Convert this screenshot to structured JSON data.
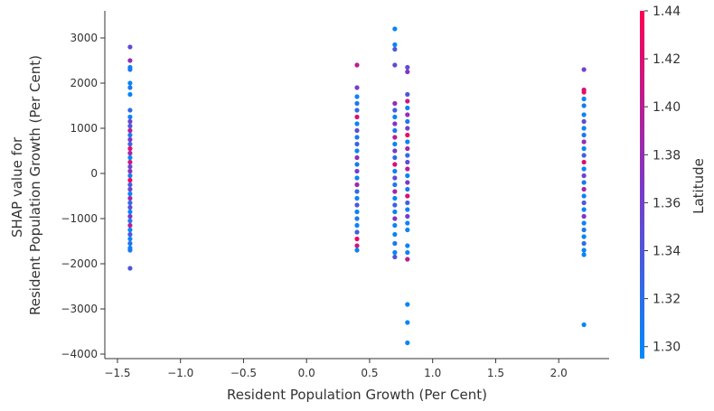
{
  "chart_data": {
    "type": "scatter",
    "title": "",
    "xlabel": "Resident Population Growth (Per Cent)",
    "ylabel_lines": [
      "SHAP value for",
      "Resident Population Growth (Per Cent)"
    ],
    "xlim": [
      -1.6,
      2.4
    ],
    "ylim": [
      -4100,
      3600
    ],
    "x_ticks": [
      -1.5,
      -1.0,
      -0.5,
      0.0,
      0.5,
      1.0,
      1.5,
      2.0
    ],
    "x_tick_labels": [
      "−1.5",
      "−1.0",
      "−0.5",
      "0.0",
      "0.5",
      "1.0",
      "1.5",
      "2.0"
    ],
    "y_ticks": [
      -4000,
      -3000,
      -2000,
      -1000,
      0,
      1000,
      2000,
      3000
    ],
    "y_tick_labels": [
      "−4000",
      "−3000",
      "−2000",
      "−1000",
      "0",
      "1000",
      "2000",
      "3000"
    ],
    "colorbar": {
      "label": "Latitude",
      "range": [
        1.295,
        1.44
      ],
      "ticks": [
        1.3,
        1.32,
        1.34,
        1.36,
        1.38,
        1.4,
        1.42,
        1.44
      ],
      "tick_labels": [
        "1.30",
        "1.32",
        "1.34",
        "1.36",
        "1.38",
        "1.40",
        "1.42",
        "1.44"
      ],
      "color_low": "#008afb",
      "color_mid": "#7d37c7",
      "color_high": "#ff0052"
    },
    "points": [
      {
        "x": -1.4,
        "y": 2800,
        "c": 1.35
      },
      {
        "x": -1.4,
        "y": 2500,
        "c": 1.38
      },
      {
        "x": -1.4,
        "y": 2350,
        "c": 1.3
      },
      {
        "x": -1.4,
        "y": 2300,
        "c": 1.31
      },
      {
        "x": -1.4,
        "y": 2000,
        "c": 1.3
      },
      {
        "x": -1.4,
        "y": 1900,
        "c": 1.31
      },
      {
        "x": -1.4,
        "y": 1750,
        "c": 1.3
      },
      {
        "x": -1.4,
        "y": 1400,
        "c": 1.32
      },
      {
        "x": -1.4,
        "y": 1250,
        "c": 1.3
      },
      {
        "x": -1.4,
        "y": 1150,
        "c": 1.36
      },
      {
        "x": -1.4,
        "y": 1050,
        "c": 1.34
      },
      {
        "x": -1.4,
        "y": 950,
        "c": 1.4
      },
      {
        "x": -1.4,
        "y": 850,
        "c": 1.31
      },
      {
        "x": -1.4,
        "y": 750,
        "c": 1.37
      },
      {
        "x": -1.4,
        "y": 650,
        "c": 1.33
      },
      {
        "x": -1.4,
        "y": 550,
        "c": 1.42
      },
      {
        "x": -1.4,
        "y": 450,
        "c": 1.39
      },
      {
        "x": -1.4,
        "y": 350,
        "c": 1.3
      },
      {
        "x": -1.4,
        "y": 250,
        "c": 1.41
      },
      {
        "x": -1.4,
        "y": 150,
        "c": 1.35
      },
      {
        "x": -1.4,
        "y": 50,
        "c": 1.38
      },
      {
        "x": -1.4,
        "y": -50,
        "c": 1.31
      },
      {
        "x": -1.4,
        "y": -150,
        "c": 1.43
      },
      {
        "x": -1.4,
        "y": -250,
        "c": 1.33
      },
      {
        "x": -1.4,
        "y": -350,
        "c": 1.36
      },
      {
        "x": -1.4,
        "y": -450,
        "c": 1.3
      },
      {
        "x": -1.4,
        "y": -550,
        "c": 1.39
      },
      {
        "x": -1.4,
        "y": -650,
        "c": 1.32
      },
      {
        "x": -1.4,
        "y": -750,
        "c": 1.35
      },
      {
        "x": -1.4,
        "y": -850,
        "c": 1.3
      },
      {
        "x": -1.4,
        "y": -950,
        "c": 1.37
      },
      {
        "x": -1.4,
        "y": -1050,
        "c": 1.31
      },
      {
        "x": -1.4,
        "y": -1150,
        "c": 1.4
      },
      {
        "x": -1.4,
        "y": -1250,
        "c": 1.3
      },
      {
        "x": -1.4,
        "y": -1350,
        "c": 1.34
      },
      {
        "x": -1.4,
        "y": -1450,
        "c": 1.3
      },
      {
        "x": -1.4,
        "y": -1550,
        "c": 1.32
      },
      {
        "x": -1.4,
        "y": -1650,
        "c": 1.3
      },
      {
        "x": -1.4,
        "y": -1700,
        "c": 1.31
      },
      {
        "x": -1.4,
        "y": -2100,
        "c": 1.34
      },
      {
        "x": 0.4,
        "y": 2400,
        "c": 1.4
      },
      {
        "x": 0.4,
        "y": 1900,
        "c": 1.36
      },
      {
        "x": 0.4,
        "y": 1700,
        "c": 1.3
      },
      {
        "x": 0.4,
        "y": 1550,
        "c": 1.31
      },
      {
        "x": 0.4,
        "y": 1400,
        "c": 1.32
      },
      {
        "x": 0.4,
        "y": 1250,
        "c": 1.42
      },
      {
        "x": 0.4,
        "y": 1100,
        "c": 1.3
      },
      {
        "x": 0.4,
        "y": 950,
        "c": 1.35
      },
      {
        "x": 0.4,
        "y": 800,
        "c": 1.31
      },
      {
        "x": 0.4,
        "y": 650,
        "c": 1.33
      },
      {
        "x": 0.4,
        "y": 500,
        "c": 1.3
      },
      {
        "x": 0.4,
        "y": 350,
        "c": 1.38
      },
      {
        "x": 0.4,
        "y": 200,
        "c": 1.31
      },
      {
        "x": 0.4,
        "y": 50,
        "c": 1.36
      },
      {
        "x": 0.4,
        "y": -100,
        "c": 1.3
      },
      {
        "x": 0.4,
        "y": -250,
        "c": 1.39
      },
      {
        "x": 0.4,
        "y": -400,
        "c": 1.32
      },
      {
        "x": 0.4,
        "y": -550,
        "c": 1.3
      },
      {
        "x": 0.4,
        "y": -700,
        "c": 1.34
      },
      {
        "x": 0.4,
        "y": -850,
        "c": 1.3
      },
      {
        "x": 0.4,
        "y": -1000,
        "c": 1.31
      },
      {
        "x": 0.4,
        "y": -1150,
        "c": 1.3
      },
      {
        "x": 0.4,
        "y": -1300,
        "c": 1.33
      },
      {
        "x": 0.4,
        "y": -1450,
        "c": 1.43
      },
      {
        "x": 0.4,
        "y": -1600,
        "c": 1.41
      },
      {
        "x": 0.4,
        "y": -1700,
        "c": 1.3
      },
      {
        "x": 0.7,
        "y": 3200,
        "c": 1.3
      },
      {
        "x": 0.7,
        "y": 2850,
        "c": 1.3
      },
      {
        "x": 0.7,
        "y": 2750,
        "c": 1.34
      },
      {
        "x": 0.7,
        "y": 2400,
        "c": 1.35
      },
      {
        "x": 0.7,
        "y": 1550,
        "c": 1.38
      },
      {
        "x": 0.7,
        "y": 1400,
        "c": 1.33
      },
      {
        "x": 0.7,
        "y": 1250,
        "c": 1.3
      },
      {
        "x": 0.7,
        "y": 1100,
        "c": 1.37
      },
      {
        "x": 0.7,
        "y": 950,
        "c": 1.31
      },
      {
        "x": 0.7,
        "y": 800,
        "c": 1.4
      },
      {
        "x": 0.7,
        "y": 650,
        "c": 1.3
      },
      {
        "x": 0.7,
        "y": 500,
        "c": 1.36
      },
      {
        "x": 0.7,
        "y": 350,
        "c": 1.32
      },
      {
        "x": 0.7,
        "y": 200,
        "c": 1.42
      },
      {
        "x": 0.7,
        "y": 50,
        "c": 1.3
      },
      {
        "x": 0.7,
        "y": -100,
        "c": 1.35
      },
      {
        "x": 0.7,
        "y": -250,
        "c": 1.31
      },
      {
        "x": 0.7,
        "y": -400,
        "c": 1.39
      },
      {
        "x": 0.7,
        "y": -550,
        "c": 1.3
      },
      {
        "x": 0.7,
        "y": -700,
        "c": 1.33
      },
      {
        "x": 0.7,
        "y": -850,
        "c": 1.3
      },
      {
        "x": 0.7,
        "y": -1000,
        "c": 1.37
      },
      {
        "x": 0.7,
        "y": -1150,
        "c": 1.3
      },
      {
        "x": 0.7,
        "y": -1350,
        "c": 1.3
      },
      {
        "x": 0.7,
        "y": -1550,
        "c": 1.31
      },
      {
        "x": 0.7,
        "y": -1750,
        "c": 1.3
      },
      {
        "x": 0.7,
        "y": -1850,
        "c": 1.34
      },
      {
        "x": 0.8,
        "y": 2350,
        "c": 1.35
      },
      {
        "x": 0.8,
        "y": 2250,
        "c": 1.37
      },
      {
        "x": 0.8,
        "y": 1750,
        "c": 1.34
      },
      {
        "x": 0.8,
        "y": 1600,
        "c": 1.41
      },
      {
        "x": 0.8,
        "y": 1450,
        "c": 1.3
      },
      {
        "x": 0.8,
        "y": 1300,
        "c": 1.38
      },
      {
        "x": 0.8,
        "y": 1150,
        "c": 1.31
      },
      {
        "x": 0.8,
        "y": 1000,
        "c": 1.36
      },
      {
        "x": 0.8,
        "y": 850,
        "c": 1.43
      },
      {
        "x": 0.8,
        "y": 700,
        "c": 1.3
      },
      {
        "x": 0.8,
        "y": 550,
        "c": 1.39
      },
      {
        "x": 0.8,
        "y": 400,
        "c": 1.32
      },
      {
        "x": 0.8,
        "y": 250,
        "c": 1.35
      },
      {
        "x": 0.8,
        "y": 100,
        "c": 1.4
      },
      {
        "x": 0.8,
        "y": -50,
        "c": 1.3
      },
      {
        "x": 0.8,
        "y": -200,
        "c": 1.37
      },
      {
        "x": 0.8,
        "y": -350,
        "c": 1.31
      },
      {
        "x": 0.8,
        "y": -500,
        "c": 1.42
      },
      {
        "x": 0.8,
        "y": -650,
        "c": 1.33
      },
      {
        "x": 0.8,
        "y": -800,
        "c": 1.3
      },
      {
        "x": 0.8,
        "y": -950,
        "c": 1.36
      },
      {
        "x": 0.8,
        "y": -1100,
        "c": 1.3
      },
      {
        "x": 0.8,
        "y": -1250,
        "c": 1.3
      },
      {
        "x": 0.8,
        "y": -1600,
        "c": 1.3
      },
      {
        "x": 0.8,
        "y": -1750,
        "c": 1.3
      },
      {
        "x": 0.8,
        "y": -1900,
        "c": 1.4
      },
      {
        "x": 0.8,
        "y": -2900,
        "c": 1.3
      },
      {
        "x": 0.8,
        "y": -3300,
        "c": 1.3
      },
      {
        "x": 0.8,
        "y": -3750,
        "c": 1.3
      },
      {
        "x": 2.2,
        "y": 2300,
        "c": 1.36
      },
      {
        "x": 2.2,
        "y": 1850,
        "c": 1.41
      },
      {
        "x": 2.2,
        "y": 1800,
        "c": 1.43
      },
      {
        "x": 2.2,
        "y": 1650,
        "c": 1.3
      },
      {
        "x": 2.2,
        "y": 1500,
        "c": 1.31
      },
      {
        "x": 2.2,
        "y": 1300,
        "c": 1.3
      },
      {
        "x": 2.2,
        "y": 1150,
        "c": 1.35
      },
      {
        "x": 2.2,
        "y": 1000,
        "c": 1.3
      },
      {
        "x": 2.2,
        "y": 850,
        "c": 1.31
      },
      {
        "x": 2.2,
        "y": 700,
        "c": 1.38
      },
      {
        "x": 2.2,
        "y": 550,
        "c": 1.3
      },
      {
        "x": 2.2,
        "y": 400,
        "c": 1.33
      },
      {
        "x": 2.2,
        "y": 250,
        "c": 1.42
      },
      {
        "x": 2.2,
        "y": 100,
        "c": 1.3
      },
      {
        "x": 2.2,
        "y": -50,
        "c": 1.36
      },
      {
        "x": 2.2,
        "y": -200,
        "c": 1.31
      },
      {
        "x": 2.2,
        "y": -350,
        "c": 1.39
      },
      {
        "x": 2.2,
        "y": -500,
        "c": 1.3
      },
      {
        "x": 2.2,
        "y": -650,
        "c": 1.34
      },
      {
        "x": 2.2,
        "y": -800,
        "c": 1.3
      },
      {
        "x": 2.2,
        "y": -950,
        "c": 1.37
      },
      {
        "x": 2.2,
        "y": -1100,
        "c": 1.3
      },
      {
        "x": 2.2,
        "y": -1250,
        "c": 1.31
      },
      {
        "x": 2.2,
        "y": -1400,
        "c": 1.3
      },
      {
        "x": 2.2,
        "y": -1550,
        "c": 1.32
      },
      {
        "x": 2.2,
        "y": -1700,
        "c": 1.3
      },
      {
        "x": 2.2,
        "y": -1800,
        "c": 1.3
      },
      {
        "x": 2.2,
        "y": -3350,
        "c": 1.3
      }
    ]
  }
}
